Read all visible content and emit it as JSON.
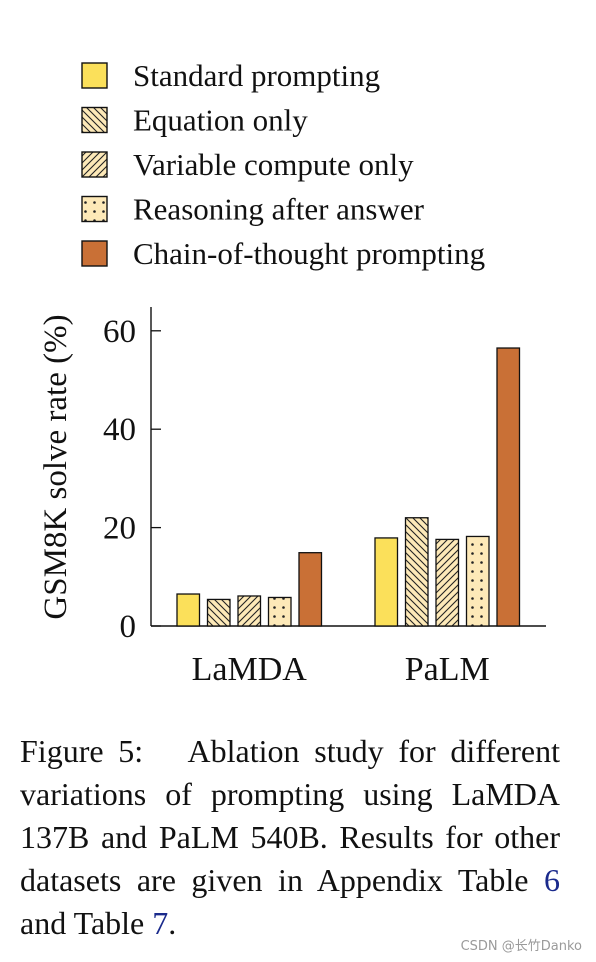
{
  "chart_data": {
    "type": "bar",
    "categories": [
      "LaMDA",
      "PaLM"
    ],
    "series": [
      {
        "name": "Standard prompting",
        "values": [
          6.5,
          17.9
        ],
        "color": "#fbe05a",
        "pattern": "solid"
      },
      {
        "name": "Equation only",
        "values": [
          5.4,
          22.0
        ],
        "color": "#fde9b8",
        "pattern": "backslash"
      },
      {
        "name": "Variable compute only",
        "values": [
          6.1,
          17.6
        ],
        "color": "#fde9b8",
        "pattern": "slash"
      },
      {
        "name": "Reasoning after answer",
        "values": [
          5.8,
          18.2
        ],
        "color": "#fde9b8",
        "pattern": "dots"
      },
      {
        "name": "Chain-of-thought prompting",
        "values": [
          14.9,
          56.5
        ],
        "color": "#c97036",
        "pattern": "solid"
      }
    ],
    "xlabel": "",
    "ylabel": "GSM8K solve rate (%)",
    "ylim": [
      0,
      65
    ],
    "yticks": [
      0,
      20,
      40,
      60
    ],
    "grid": false,
    "legend_position": "top"
  },
  "caption": {
    "text_before": "Figure 5:   Ablation study for different variations of prompting using LaMDA 137B and PaLM 540B. Results for other datasets are given in Appendix Table ",
    "ref1": "6",
    "text_middle": " and Table ",
    "ref2": "7",
    "text_after": "."
  },
  "watermark": "CSDN @长竹Danko"
}
